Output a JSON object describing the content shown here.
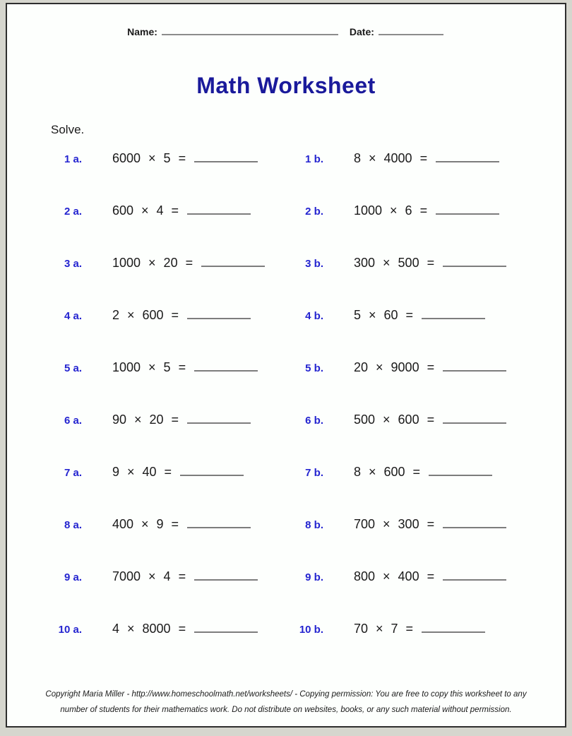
{
  "header": {
    "name_label": "Name:",
    "date_label": "Date:"
  },
  "title": "Math Worksheet",
  "instruction": "Solve.",
  "colors": {
    "title_navy": "#1a1a9b",
    "problem_label_blue": "#2424d0",
    "blank_line_gray": "#7d7d7d",
    "page_background": "#fdfffd",
    "outer_background": "#d6d6ce"
  },
  "problems": [
    {
      "label": "1 a.",
      "expr": "6000 × 5 ="
    },
    {
      "label": "1 b.",
      "expr": "8 × 4000 ="
    },
    {
      "label": "2 a.",
      "expr": "600 × 4 ="
    },
    {
      "label": "2 b.",
      "expr": "1000 × 6 ="
    },
    {
      "label": "3 a.",
      "expr": "1000 × 20 ="
    },
    {
      "label": "3 b.",
      "expr": "300 × 500 ="
    },
    {
      "label": "4 a.",
      "expr": "2 × 600 ="
    },
    {
      "label": "4 b.",
      "expr": "5 × 60 ="
    },
    {
      "label": "5 a.",
      "expr": "1000 × 5 ="
    },
    {
      "label": "5 b.",
      "expr": "20 × 9000 ="
    },
    {
      "label": "6 a.",
      "expr": "90 × 20 ="
    },
    {
      "label": "6 b.",
      "expr": "500 × 600 ="
    },
    {
      "label": "7 a.",
      "expr": "9 × 40 ="
    },
    {
      "label": "7 b.",
      "expr": "8 × 600 ="
    },
    {
      "label": "8 a.",
      "expr": "400 × 9 ="
    },
    {
      "label": "8 b.",
      "expr": "700 × 300 ="
    },
    {
      "label": "9 a.",
      "expr": "7000 × 4 ="
    },
    {
      "label": "9 b.",
      "expr": "800 × 400 ="
    },
    {
      "label": "10 a.",
      "expr": "4 × 8000 ="
    },
    {
      "label": "10 b.",
      "expr": "70 × 7 ="
    }
  ],
  "footer": {
    "line1": "Copyright Maria Miller - http://www.homeschoolmath.net/worksheets/ - Copying permission: You are free to copy this worksheet to any",
    "line2": "number of students for their mathematics work. Do not distribute on websites, books, or any such material without permission."
  }
}
